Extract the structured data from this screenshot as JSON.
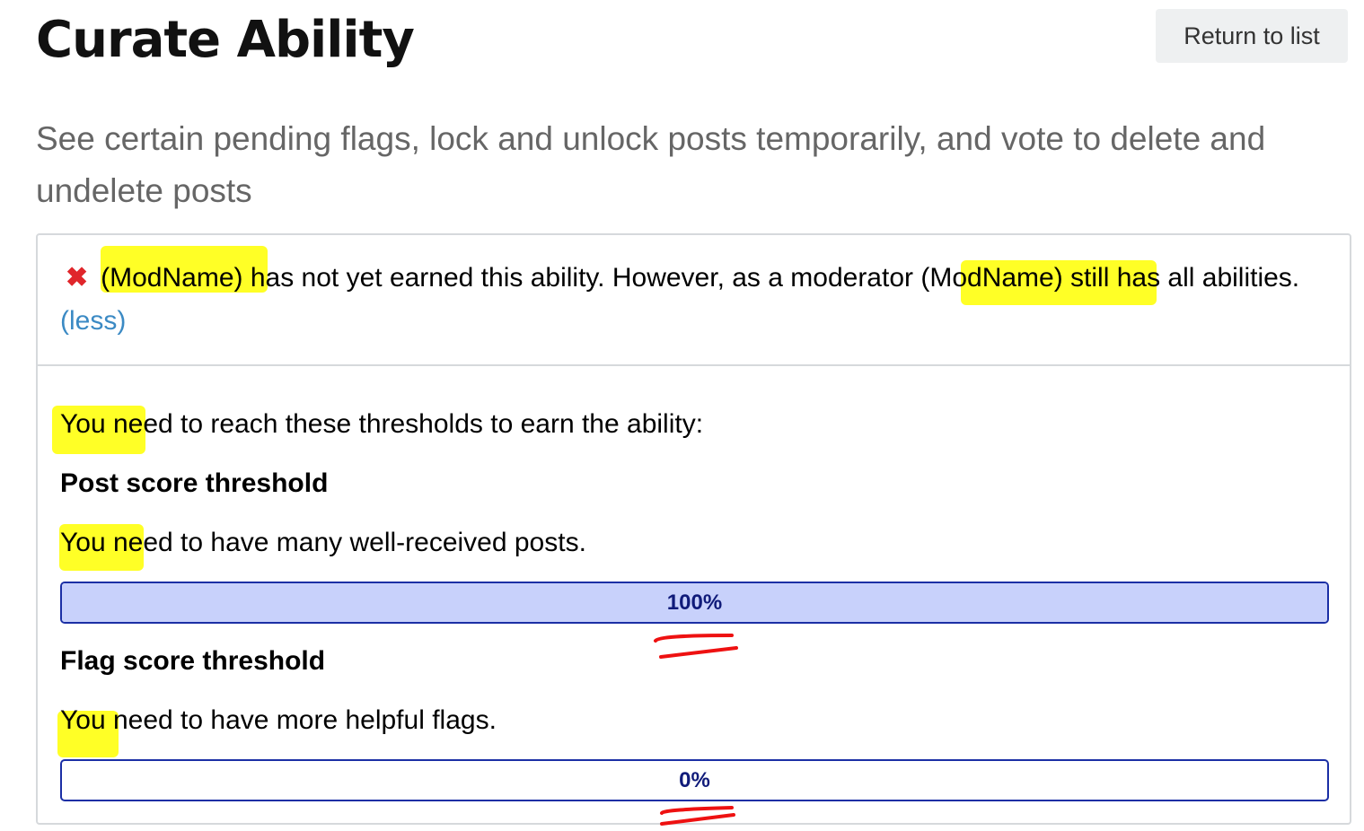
{
  "page": {
    "title": "Curate Ability",
    "return_label": "Return to list",
    "description": "See certain pending flags, lock and unlock posts temporarily, and vote to delete and undelete posts"
  },
  "status": {
    "icon": "x-icon",
    "message": "(ModName) has not yet earned this ability. However, as a moderator (ModName) still has all abilities.",
    "less_link": "(less)"
  },
  "thresholds": {
    "intro": "You need to reach these thresholds to earn the ability:",
    "items": [
      {
        "heading": "Post score threshold",
        "description": "You need to have many well-received posts.",
        "progress_label": "100%",
        "progress": 100
      },
      {
        "heading": "Flag score threshold",
        "description": "You need to have more helpful flags.",
        "progress_label": "0%",
        "progress": 0
      }
    ]
  },
  "colors": {
    "error": "#e0262b",
    "link": "#3b8ac4",
    "progress_border": "#1b2fa5",
    "progress_fill": "#c8d1fb",
    "highlight": "#ffff00",
    "annotation": "#ee1111"
  }
}
